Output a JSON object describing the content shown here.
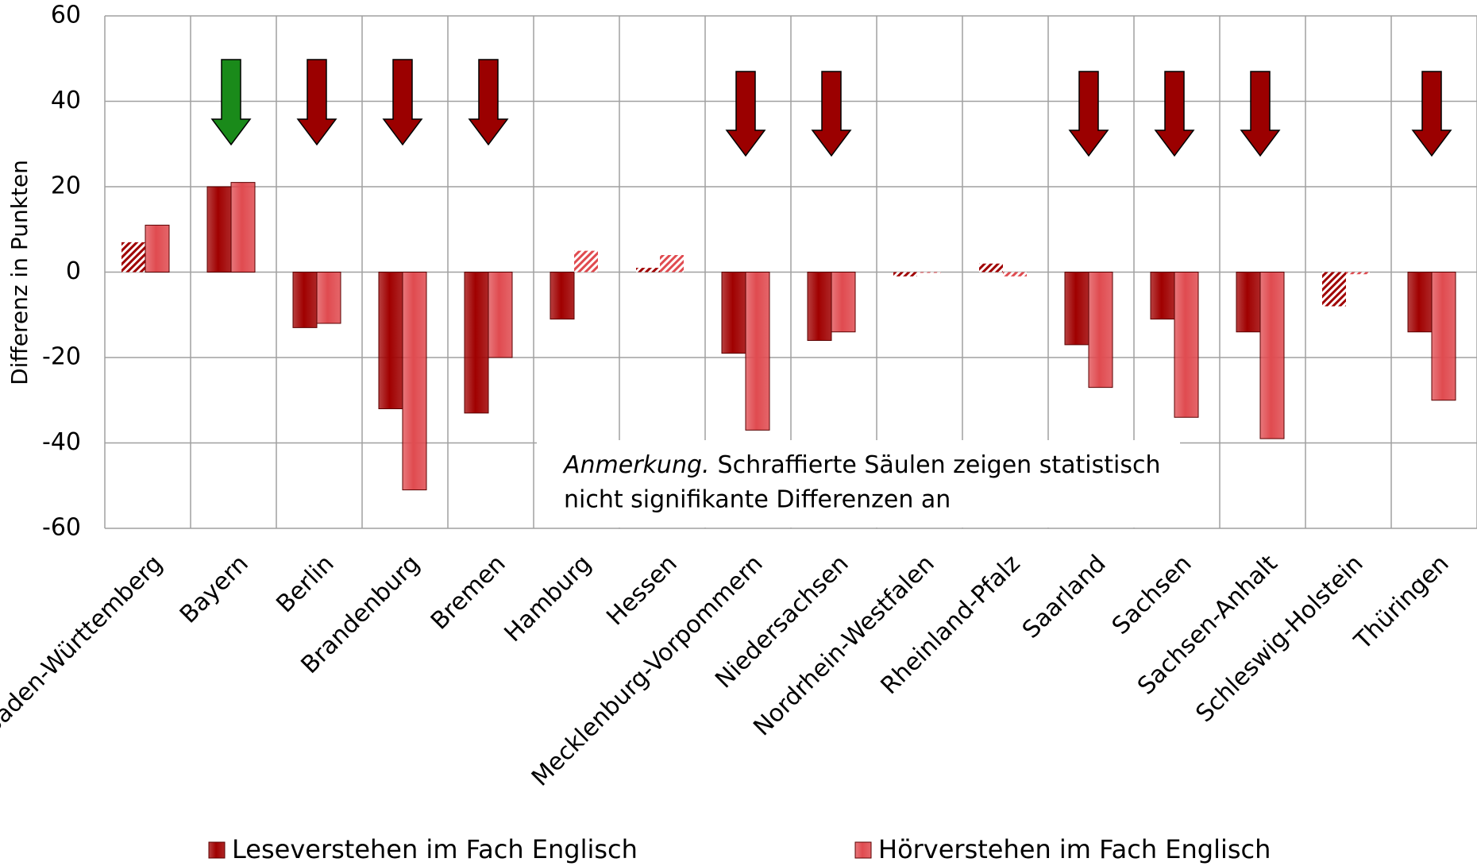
{
  "chart_data": {
    "type": "bar",
    "y_label": "Differenz in Punkten",
    "categories": [
      "Baden-Württemberg",
      "Bayern",
      "Berlin",
      "Brandenburg",
      "Bremen",
      "Hamburg",
      "Hessen",
      "Mecklenburg-Vorpommern",
      "Niedersachsen",
      "Nordrhein-Westfalen",
      "Rheinland-Pfalz",
      "Saarland",
      "Sachsen",
      "Sachsen-Anhalt",
      "Schleswig-Holstein",
      "Thüringen"
    ],
    "series": [
      {
        "name": "Leseverstehen im Fach Englisch",
        "color": "#a00000",
        "values": [
          7,
          20,
          -13,
          -32,
          -33,
          -11,
          1,
          -19,
          -16,
          -1,
          2,
          -17,
          -11,
          -14,
          -8,
          -14
        ],
        "significant": [
          false,
          true,
          true,
          true,
          true,
          true,
          false,
          true,
          true,
          false,
          false,
          true,
          true,
          true,
          false,
          true
        ]
      },
      {
        "name": "Hörverstehen im Fach Englisch",
        "color": "#e04b50",
        "values": [
          11,
          21,
          -12,
          -51,
          -20,
          5,
          4,
          -37,
          -14,
          0,
          -1,
          -27,
          -34,
          -39,
          -0.5,
          -30
        ],
        "significant": [
          true,
          true,
          true,
          true,
          true,
          false,
          false,
          true,
          true,
          false,
          false,
          true,
          true,
          true,
          false,
          true
        ]
      }
    ],
    "arrows": [
      null,
      "#1a8a1a",
      "#9b0000",
      "#9b0000",
      "#9b0000",
      null,
      null,
      "#9b0000",
      "#9b0000",
      null,
      null,
      "#9b0000",
      "#9b0000",
      "#9b0000",
      null,
      "#9b0000"
    ],
    "annotation": {
      "emphasis": "Anmerkung.",
      "lines": [
        "Schraffierte Säulen zeigen statistisch",
        "nicht signifikante Differenzen an"
      ]
    },
    "ylim": [
      -60,
      60
    ],
    "yticks": [
      -60,
      -40,
      -20,
      0,
      20,
      40,
      60
    ],
    "grid": true,
    "legend": "bottom"
  }
}
